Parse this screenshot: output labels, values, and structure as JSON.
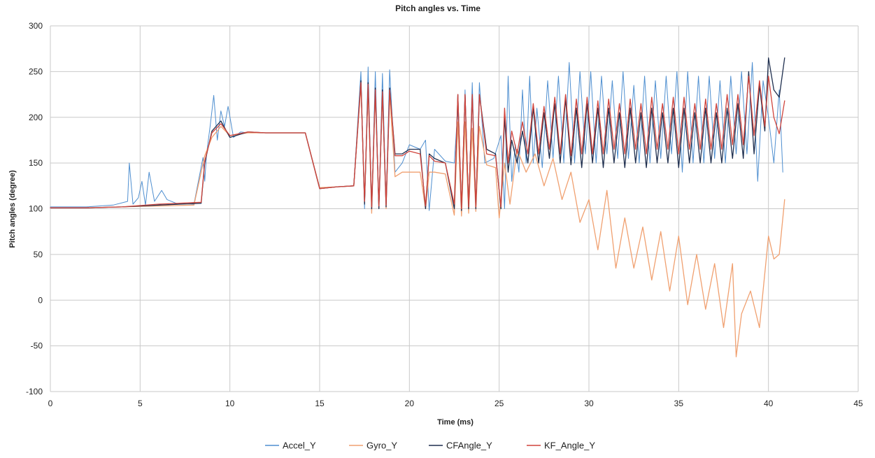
{
  "chart_data": {
    "type": "line",
    "title": "Pitch angles vs. Time",
    "xlabel": "Time (ms)",
    "ylabel": "Pitch angles (degree)",
    "xlim": [
      0,
      45
    ],
    "ylim": [
      -100,
      300
    ],
    "xticks": [
      0,
      5,
      10,
      15,
      20,
      25,
      30,
      35,
      40,
      45
    ],
    "yticks": [
      -100,
      -50,
      0,
      50,
      100,
      150,
      200,
      250,
      300
    ],
    "grid": true,
    "legend_position": "bottom",
    "series": [
      {
        "name": "Accel_Y",
        "color": "#4f8fd0",
        "x": [
          0,
          2,
          3.5,
          4.3,
          4.4,
          4.6,
          4.9,
          5.1,
          5.3,
          5.5,
          5.8,
          6.2,
          6.5,
          7,
          8,
          8.5,
          8.6,
          8.7,
          8.9,
          9.1,
          9.3,
          9.5,
          9.7,
          9.9,
          10.2,
          10.6,
          11,
          11.7,
          12.5,
          14.2,
          15,
          16,
          16.9,
          17.3,
          17.5,
          17.7,
          17.9,
          18.1,
          18.3,
          18.5,
          18.7,
          18.9,
          19.2,
          19.6,
          20,
          20.6,
          20.9,
          21.1,
          21.4,
          22,
          22.5,
          22.7,
          22.9,
          23.1,
          23.3,
          23.5,
          23.7,
          23.9,
          24.2,
          24.7,
          25.1,
          25.3,
          25.5,
          25.7,
          25.9,
          26.1,
          26.3,
          26.5,
          26.7,
          26.9,
          27.1,
          27.4,
          27.7,
          28,
          28.3,
          28.6,
          28.9,
          29.2,
          29.5,
          29.8,
          30.1,
          30.4,
          30.7,
          31,
          31.3,
          31.6,
          31.9,
          32.2,
          32.5,
          32.8,
          33.1,
          33.4,
          33.7,
          34,
          34.3,
          34.6,
          34.9,
          35.2,
          35.5,
          35.8,
          36.1,
          36.4,
          36.7,
          37,
          37.3,
          37.6,
          37.9,
          38.2,
          38.5,
          38.8,
          39.1,
          39.4,
          39.7,
          40,
          40.3,
          40.6,
          40.8
        ],
        "y": [
          102,
          102,
          104,
          108,
          150,
          105,
          112,
          130,
          104,
          140,
          108,
          120,
          110,
          106,
          105,
          156,
          130,
          160,
          190,
          224,
          175,
          207,
          190,
          212,
          178,
          184,
          183,
          183,
          183,
          183,
          122,
          124,
          125,
          250,
          100,
          255,
          98,
          250,
          100,
          248,
          105,
          252,
          140,
          150,
          170,
          165,
          175,
          98,
          165,
          152,
          150,
          210,
          95,
          230,
          98,
          238,
          100,
          238,
          150,
          155,
          180,
          100,
          245,
          130,
          170,
          140,
          230,
          150,
          245,
          150,
          210,
          145,
          240,
          155,
          245,
          150,
          260,
          150,
          250,
          160,
          250,
          150,
          245,
          160,
          240,
          155,
          250,
          155,
          235,
          150,
          245,
          150,
          240,
          155,
          245,
          160,
          250,
          140,
          250,
          150,
          245,
          150,
          245,
          155,
          240,
          150,
          245,
          160,
          250,
          160,
          260,
          130,
          240,
          200,
          150,
          230,
          140
        ]
      },
      {
        "name": "Gyro_Y",
        "color": "#f0a070",
        "x": [
          0,
          2,
          4,
          6,
          8,
          8.6,
          9,
          9.5,
          10,
          11,
          12,
          14.2,
          15,
          16,
          16.9,
          17.3,
          17.5,
          17.7,
          17.9,
          18.1,
          18.3,
          18.5,
          18.7,
          18.9,
          19.2,
          19.6,
          20,
          20.6,
          20.9,
          21.1,
          21.4,
          22,
          22.5,
          22.7,
          22.9,
          23.1,
          23.3,
          23.5,
          23.7,
          23.9,
          24.3,
          24.8,
          25,
          25.3,
          25.6,
          26,
          26.5,
          27,
          27.5,
          28,
          28.5,
          29,
          29.5,
          30,
          30.5,
          31,
          31.5,
          32,
          32.5,
          33,
          33.5,
          34,
          34.5,
          35,
          35.5,
          36,
          36.5,
          37,
          37.5,
          38,
          38.2,
          38.5,
          39,
          39.5,
          40,
          40.3,
          40.6,
          40.9
        ],
        "y": [
          101,
          101,
          102,
          103,
          104,
          158,
          178,
          190,
          180,
          183,
          183,
          183,
          123,
          124,
          125,
          235,
          108,
          230,
          95,
          228,
          100,
          225,
          100,
          225,
          135,
          140,
          140,
          140,
          100,
          140,
          140,
          138,
          93,
          195,
          92,
          195,
          95,
          188,
          97,
          190,
          148,
          145,
          90,
          150,
          105,
          165,
          140,
          160,
          125,
          155,
          110,
          140,
          85,
          110,
          55,
          120,
          35,
          90,
          35,
          80,
          22,
          75,
          10,
          70,
          -5,
          50,
          -10,
          40,
          -30,
          40,
          -62,
          -15,
          10,
          -30,
          70,
          45,
          50,
          110
        ]
      },
      {
        "name": "CFAngle_Y",
        "color": "#1f2f4f",
        "x": [
          0,
          2,
          4,
          6,
          8.4,
          8.6,
          9,
          9.5,
          10,
          11,
          12,
          14.2,
          15,
          16,
          16.9,
          17.3,
          17.5,
          17.7,
          17.9,
          18.1,
          18.3,
          18.5,
          18.7,
          18.9,
          19.2,
          19.6,
          20,
          20.6,
          20.9,
          21.1,
          21.4,
          22,
          22.5,
          22.7,
          22.9,
          23.1,
          23.3,
          23.5,
          23.7,
          23.9,
          24.3,
          24.8,
          25.1,
          25.3,
          25.5,
          25.7,
          26,
          26.3,
          26.6,
          26.9,
          27.2,
          27.5,
          27.8,
          28.1,
          28.4,
          28.7,
          29,
          29.3,
          29.6,
          29.9,
          30.2,
          30.5,
          30.8,
          31.1,
          31.4,
          31.7,
          32,
          32.3,
          32.6,
          32.9,
          33.2,
          33.5,
          33.8,
          34.1,
          34.4,
          34.7,
          35,
          35.3,
          35.6,
          35.9,
          36.2,
          36.5,
          36.8,
          37.1,
          37.4,
          37.7,
          38,
          38.3,
          38.6,
          38.9,
          39.2,
          39.5,
          39.8,
          40,
          40.3,
          40.6,
          40.9
        ],
        "y": [
          101,
          101,
          102,
          104,
          106,
          150,
          185,
          196,
          178,
          184,
          183,
          183,
          122,
          124,
          125,
          240,
          105,
          238,
          100,
          232,
          100,
          230,
          102,
          232,
          160,
          160,
          165,
          165,
          100,
          160,
          155,
          150,
          100,
          225,
          98,
          225,
          100,
          225,
          100,
          225,
          165,
          160,
          100,
          200,
          140,
          175,
          150,
          185,
          150,
          210,
          150,
          205,
          155,
          215,
          150,
          220,
          148,
          210,
          145,
          215,
          150,
          210,
          145,
          210,
          150,
          205,
          145,
          210,
          150,
          205,
          145,
          210,
          150,
          205,
          150,
          210,
          145,
          210,
          150,
          205,
          150,
          210,
          150,
          205,
          150,
          210,
          155,
          215,
          155,
          250,
          160,
          235,
          185,
          265,
          230,
          222,
          265
        ]
      },
      {
        "name": "KF_Angle_Y",
        "color": "#d0443c",
        "x": [
          0,
          2,
          4,
          6,
          8.4,
          8.6,
          9,
          9.5,
          10,
          11,
          12,
          14.2,
          15,
          16,
          16.9,
          17.3,
          17.5,
          17.7,
          17.9,
          18.1,
          18.3,
          18.5,
          18.7,
          18.9,
          19.2,
          19.6,
          20,
          20.6,
          20.9,
          21.1,
          21.4,
          22,
          22.5,
          22.7,
          22.9,
          23.1,
          23.3,
          23.5,
          23.7,
          23.9,
          24.3,
          24.8,
          25.1,
          25.3,
          25.5,
          25.7,
          26,
          26.3,
          26.6,
          26.9,
          27.2,
          27.5,
          27.8,
          28.1,
          28.4,
          28.7,
          29,
          29.3,
          29.6,
          29.9,
          30.2,
          30.5,
          30.8,
          31.1,
          31.4,
          31.7,
          32,
          32.3,
          32.6,
          32.9,
          33.2,
          33.5,
          33.8,
          34.1,
          34.4,
          34.7,
          35,
          35.3,
          35.6,
          35.9,
          36.2,
          36.5,
          36.8,
          37.1,
          37.4,
          37.7,
          38,
          38.3,
          38.6,
          38.9,
          39.2,
          39.5,
          39.8,
          40,
          40.3,
          40.6,
          40.9
        ],
        "y": [
          101,
          101,
          102,
          105,
          107,
          152,
          183,
          193,
          180,
          184,
          183,
          183,
          122,
          124,
          125,
          238,
          108,
          236,
          102,
          230,
          103,
          228,
          104,
          230,
          158,
          158,
          163,
          160,
          103,
          158,
          152,
          150,
          105,
          225,
          100,
          225,
          102,
          225,
          102,
          225,
          160,
          158,
          102,
          210,
          150,
          185,
          160,
          195,
          160,
          215,
          160,
          212,
          165,
          222,
          160,
          225,
          158,
          220,
          160,
          222,
          160,
          218,
          160,
          220,
          165,
          215,
          160,
          220,
          165,
          215,
          160,
          222,
          165,
          215,
          165,
          222,
          160,
          222,
          165,
          215,
          165,
          220,
          165,
          215,
          165,
          225,
          170,
          225,
          170,
          245,
          180,
          240,
          190,
          245,
          200,
          182,
          218
        ]
      }
    ]
  }
}
